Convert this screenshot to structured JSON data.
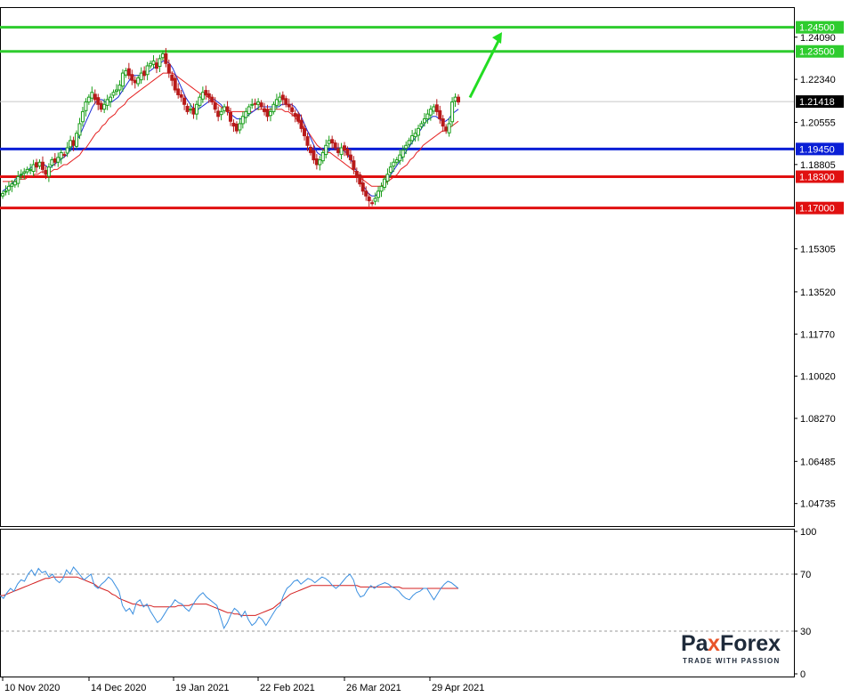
{
  "chart_data": [
    {
      "type": "candlestick",
      "instrument_panel": "main",
      "ylim": [
        1.038,
        1.253
      ],
      "y_ticks": [
        "1.24090",
        "1.22340",
        "1.20555",
        "1.18805",
        "1.15305",
        "1.13520",
        "1.11770",
        "1.10020",
        "1.08270",
        "1.06485",
        "1.04735"
      ],
      "x_labels": [
        "10 Nov 2020",
        "14 Dec 2020",
        "19 Jan 2021",
        "22 Feb 2021",
        "26 Mar 2021",
        "29 Apr 2021"
      ],
      "current_price": {
        "value": 1.21418,
        "label": "1.21418",
        "color": "#000000"
      },
      "levels": [
        {
          "value": 1.245,
          "label": "1.24500",
          "color": "#2ecc2e"
        },
        {
          "value": 1.235,
          "label": "1.23500",
          "color": "#2ecc2e"
        },
        {
          "value": 1.1945,
          "label": "1.19450",
          "color": "#0a1fd6"
        },
        {
          "value": 1.183,
          "label": "1.18300",
          "color": "#e01010"
        },
        {
          "value": 1.17,
          "label": "1.17000",
          "color": "#e01010"
        }
      ],
      "forecast_arrow": {
        "direction": "up",
        "color": "#22dd22",
        "from_price": 1.2155,
        "to_price": 1.243
      },
      "colors": {
        "bull": "#1a9e1a",
        "bear": "#b81a1a",
        "ma_fast": "#1c2bd6",
        "ma_slow": "#e52020"
      },
      "closes": [
        1.176,
        1.177,
        1.179,
        1.18,
        1.181,
        1.183,
        1.184,
        1.185,
        1.186,
        1.186,
        1.188,
        1.187,
        1.189,
        1.186,
        1.184,
        1.187,
        1.19,
        1.189,
        1.191,
        1.193,
        1.192,
        1.195,
        1.198,
        1.196,
        1.201,
        1.205,
        1.21,
        1.214,
        1.216,
        1.218,
        1.215,
        1.213,
        1.211,
        1.213,
        1.215,
        1.216,
        1.218,
        1.219,
        1.221,
        1.226,
        1.227,
        1.225,
        1.223,
        1.222,
        1.224,
        1.226,
        1.225,
        1.229,
        1.23,
        1.231,
        1.228,
        1.232,
        1.234,
        1.23,
        1.226,
        1.223,
        1.219,
        1.217,
        1.216,
        1.213,
        1.21,
        1.211,
        1.209,
        1.213,
        1.216,
        1.218,
        1.217,
        1.216,
        1.214,
        1.211,
        1.208,
        1.21,
        1.212,
        1.21,
        1.206,
        1.204,
        1.202,
        1.205,
        1.208,
        1.21,
        1.212,
        1.213,
        1.213,
        1.214,
        1.212,
        1.21,
        1.208,
        1.21,
        1.213,
        1.215,
        1.216,
        1.215,
        1.213,
        1.212,
        1.21,
        1.208,
        1.206,
        1.203,
        1.2,
        1.196,
        1.193,
        1.19,
        1.188,
        1.19,
        1.193,
        1.196,
        1.198,
        1.197,
        1.195,
        1.193,
        1.195,
        1.194,
        1.192,
        1.19,
        1.186,
        1.183,
        1.18,
        1.177,
        1.175,
        1.173,
        1.172,
        1.174,
        1.177,
        1.179,
        1.182,
        1.184,
        1.187,
        1.189,
        1.19,
        1.192,
        1.194,
        1.196,
        1.198,
        1.2,
        1.201,
        1.203,
        1.205,
        1.207,
        1.209,
        1.211,
        1.212,
        1.21,
        1.207,
        1.204,
        1.202,
        1.205,
        1.214,
        1.216,
        1.214
      ],
      "ma_fast": [
        1.177,
        1.178,
        1.179,
        1.18,
        1.182,
        1.183,
        1.184,
        1.185,
        1.186,
        1.187,
        1.187,
        1.188,
        1.188,
        1.188,
        1.187,
        1.187,
        1.188,
        1.189,
        1.19,
        1.191,
        1.192,
        1.194,
        1.196,
        1.198,
        1.2,
        1.203,
        1.206,
        1.209,
        1.212,
        1.214,
        1.215,
        1.215,
        1.214,
        1.214,
        1.214,
        1.215,
        1.216,
        1.218,
        1.22,
        1.222,
        1.224,
        1.225,
        1.225,
        1.225,
        1.225,
        1.226,
        1.227,
        1.228,
        1.229,
        1.23,
        1.231,
        1.231,
        1.23,
        1.228,
        1.225,
        1.222,
        1.219,
        1.216,
        1.214,
        1.212,
        1.211,
        1.211,
        1.212,
        1.213,
        1.214,
        1.215,
        1.215,
        1.214,
        1.213,
        1.211,
        1.21,
        1.209,
        1.208,
        1.207,
        1.207,
        1.207,
        1.208,
        1.209,
        1.21,
        1.211,
        1.212,
        1.212,
        1.212,
        1.212,
        1.212,
        1.212,
        1.212,
        1.213,
        1.213,
        1.213,
        1.213,
        1.212,
        1.21,
        1.208,
        1.205,
        1.202,
        1.199,
        1.196,
        1.193,
        1.192,
        1.192,
        1.193,
        1.194,
        1.195,
        1.195,
        1.195,
        1.194,
        1.193,
        1.191,
        1.189,
        1.186,
        1.183,
        1.18,
        1.178,
        1.176,
        1.175,
        1.175,
        1.176,
        1.178,
        1.18,
        1.182,
        1.184,
        1.186,
        1.188,
        1.19,
        1.192,
        1.194,
        1.196,
        1.198,
        1.2,
        1.202,
        1.204,
        1.206,
        1.207,
        1.208,
        1.208,
        1.207,
        1.206,
        1.206,
        1.207,
        1.209,
        1.21,
        1.211
      ],
      "ma_slow": [
        1.181,
        1.181,
        1.181,
        1.181,
        1.181,
        1.182,
        1.182,
        1.182,
        1.183,
        1.183,
        1.184,
        1.184,
        1.185,
        1.185,
        1.185,
        1.185,
        1.186,
        1.186,
        1.187,
        1.188,
        1.188,
        1.189,
        1.19,
        1.191,
        1.192,
        1.194,
        1.195,
        1.197,
        1.199,
        1.201,
        1.202,
        1.204,
        1.205,
        1.207,
        1.208,
        1.209,
        1.211,
        1.212,
        1.213,
        1.215,
        1.216,
        1.217,
        1.218,
        1.219,
        1.22,
        1.221,
        1.222,
        1.223,
        1.224,
        1.225,
        1.226,
        1.226,
        1.226,
        1.226,
        1.225,
        1.224,
        1.223,
        1.222,
        1.221,
        1.22,
        1.219,
        1.218,
        1.217,
        1.217,
        1.216,
        1.215,
        1.214,
        1.213,
        1.212,
        1.211,
        1.211,
        1.21,
        1.21,
        1.21,
        1.21,
        1.21,
        1.21,
        1.21,
        1.21,
        1.211,
        1.211,
        1.211,
        1.211,
        1.211,
        1.211,
        1.211,
        1.211,
        1.211,
        1.21,
        1.21,
        1.209,
        1.208,
        1.206,
        1.205,
        1.203,
        1.202,
        1.2,
        1.198,
        1.196,
        1.195,
        1.194,
        1.193,
        1.193,
        1.192,
        1.191,
        1.19,
        1.189,
        1.188,
        1.187,
        1.186,
        1.185,
        1.183,
        1.182,
        1.181,
        1.18,
        1.179,
        1.179,
        1.179,
        1.179,
        1.18,
        1.181,
        1.182,
        1.183,
        1.184,
        1.186,
        1.187,
        1.188,
        1.19,
        1.191,
        1.193,
        1.194,
        1.196,
        1.197,
        1.198,
        1.199,
        1.2,
        1.201,
        1.202,
        1.202,
        1.203,
        1.204,
        1.205,
        1.206
      ]
    },
    {
      "type": "line",
      "instrument_panel": "oscillator",
      "ylim": [
        0,
        100
      ],
      "y_ticks": [
        "100",
        "70",
        "30",
        "0"
      ],
      "levels": [
        70,
        30
      ],
      "colors": {
        "fast": "#3a8fe0",
        "slow": "#d42020"
      },
      "fast": [
        55,
        53,
        57,
        60,
        58,
        63,
        66,
        65,
        70,
        73,
        69,
        74,
        71,
        72,
        68,
        70,
        66,
        64,
        67,
        73,
        70,
        75,
        72,
        69,
        66,
        68,
        70,
        62,
        60,
        63,
        65,
        68,
        66,
        62,
        58,
        48,
        44,
        46,
        42,
        50,
        52,
        47,
        49,
        44,
        40,
        36,
        38,
        42,
        46,
        48,
        52,
        50,
        49,
        46,
        44,
        48,
        52,
        55,
        57,
        54,
        52,
        50,
        48,
        40,
        32,
        36,
        42,
        46,
        44,
        40,
        44,
        38,
        34,
        36,
        40,
        38,
        34,
        38,
        42,
        46,
        48,
        55,
        60,
        62,
        65,
        66,
        63,
        65,
        67,
        66,
        64,
        66,
        68,
        67,
        65,
        62,
        60,
        62,
        65,
        68,
        70,
        66,
        58,
        54,
        55,
        59,
        62,
        60,
        62,
        63,
        64,
        63,
        61,
        60,
        58,
        55,
        53,
        52,
        55,
        57,
        58,
        60,
        60,
        56,
        52,
        56,
        60,
        63,
        65,
        64,
        62,
        60
      ],
      "slow": [
        55,
        55,
        56,
        57,
        58,
        59,
        60,
        61,
        62,
        63,
        64,
        65,
        66,
        67,
        67,
        68,
        68,
        68,
        68,
        68,
        68,
        68,
        68,
        67,
        66,
        65,
        64,
        63,
        61,
        60,
        59,
        58,
        56,
        55,
        53,
        52,
        51,
        50,
        49,
        49,
        48,
        48,
        48,
        48,
        47,
        47,
        47,
        47,
        47,
        47,
        47,
        48,
        48,
        48,
        48,
        49,
        49,
        49,
        49,
        49,
        48,
        47,
        46,
        45,
        44,
        43,
        43,
        42,
        42,
        41,
        41,
        41,
        41,
        41,
        42,
        43,
        44,
        45,
        46,
        48,
        50,
        52,
        54,
        56,
        57,
        58,
        59,
        60,
        61,
        62,
        62,
        62,
        62,
        62,
        62,
        62,
        62,
        62,
        62,
        62,
        62,
        62,
        62,
        61,
        61,
        61,
        61,
        61,
        61,
        61,
        61,
        61,
        61,
        61,
        61,
        60,
        60,
        60,
        60,
        60,
        60,
        60,
        60,
        60,
        60,
        60,
        60,
        60,
        60,
        60,
        60,
        60
      ]
    }
  ],
  "watermark": {
    "brand_left": "Pa",
    "brand_x": "x",
    "brand_right": "Forex",
    "tagline": "TRADE WITH PASSION"
  }
}
